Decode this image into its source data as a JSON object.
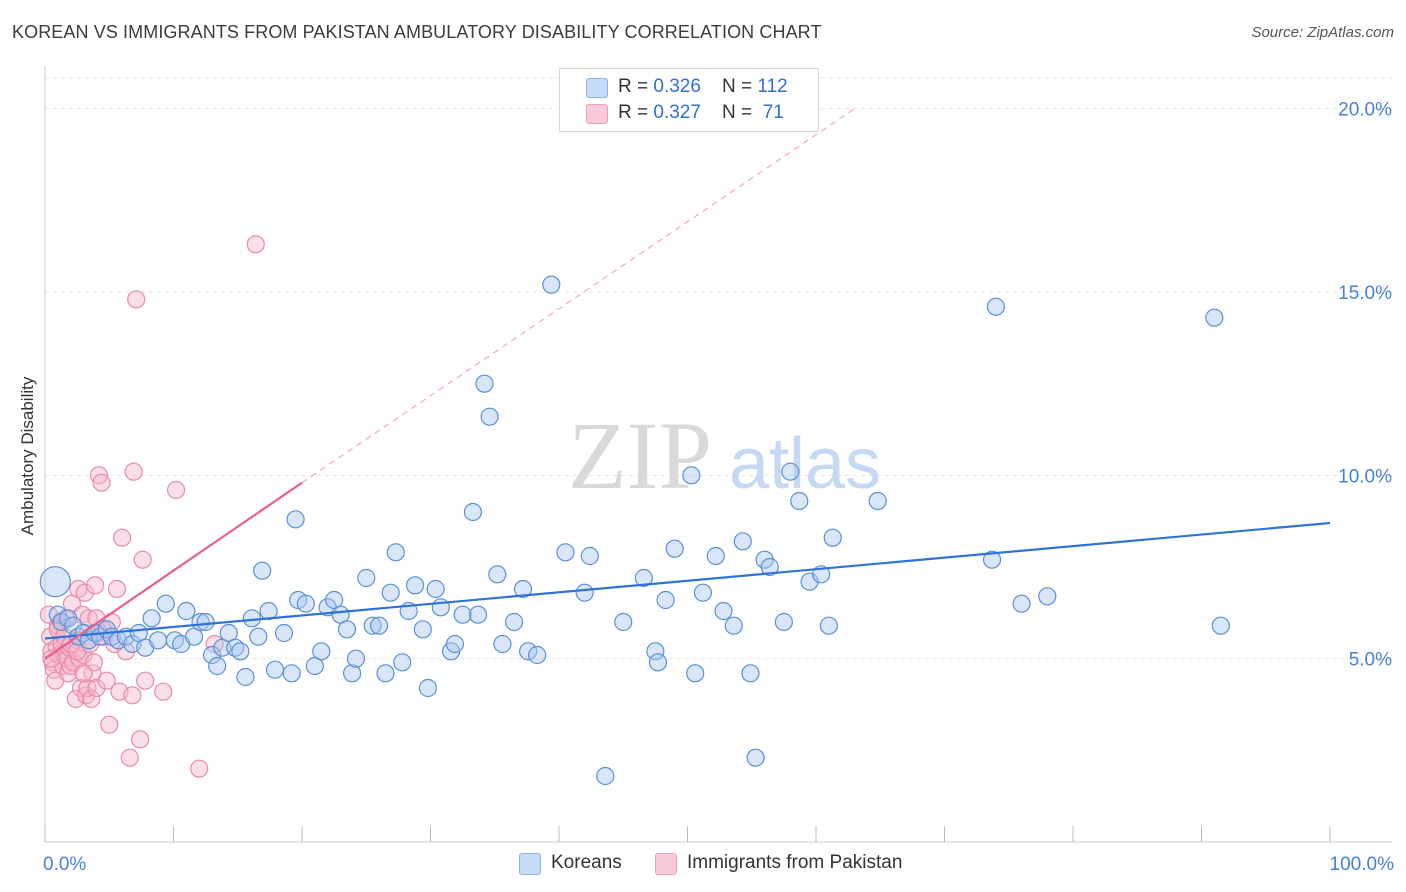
{
  "header": {
    "title": "KOREAN VS IMMIGRANTS FROM PAKISTAN AMBULATORY DISABILITY CORRELATION CHART",
    "source": "Source: ZipAtlas.com"
  },
  "watermark": {
    "zip": "ZIP",
    "atlas": "atlas"
  },
  "legend": {
    "korean": {
      "r_label": "R = ",
      "r_value": "0.326",
      "n_label": "N = ",
      "n_value": "112"
    },
    "pakistan": {
      "r_label": "R = ",
      "r_value": "0.327",
      "n_label": "N = ",
      "n_value": " 71"
    }
  },
  "colors": {
    "korean_fill": "#a9c8f0",
    "korean_stroke": "#5b8fd6",
    "korean_line": "#2f73d6",
    "pakistan_fill": "#f7b8cc",
    "pakistan_stroke": "#e889a8",
    "pakistan_line": "#e8608a",
    "tick_label": "#4a7fd4"
  },
  "chart_data": {
    "type": "scatter",
    "title": "KOREAN VS IMMIGRANTS FROM PAKISTAN AMBULATORY DISABILITY CORRELATION CHART",
    "xlabel": "",
    "ylabel": "Ambulatory Disability",
    "xlim": [
      0,
      100
    ],
    "ylim": [
      0,
      21
    ],
    "y_ticks": [
      5,
      10,
      15,
      20
    ],
    "y_tick_labels": [
      "5.0%",
      "10.0%",
      "15.0%",
      "20.0%"
    ],
    "x_tick_labels": [
      "0.0%",
      "100.0%"
    ],
    "grid": true,
    "legend_position": "top-center",
    "series": [
      {
        "name": "Koreans",
        "r": 0.326,
        "n": 112,
        "trend": {
          "x": [
            0,
            100
          ],
          "y": [
            5.55,
            8.7
          ]
        },
        "points": [
          [
            0.8,
            7.1
          ],
          [
            1.0,
            6.2
          ],
          [
            1.3,
            6.0
          ],
          [
            1.8,
            6.1
          ],
          [
            2.2,
            5.9
          ],
          [
            2.6,
            5.6
          ],
          [
            3.0,
            5.7
          ],
          [
            3.4,
            5.5
          ],
          [
            3.9,
            5.7
          ],
          [
            4.3,
            5.6
          ],
          [
            4.8,
            5.8
          ],
          [
            5.2,
            5.6
          ],
          [
            5.7,
            5.5
          ],
          [
            6.3,
            5.6
          ],
          [
            6.8,
            5.4
          ],
          [
            7.3,
            5.7
          ],
          [
            7.8,
            5.3
          ],
          [
            8.3,
            6.1
          ],
          [
            8.8,
            5.5
          ],
          [
            9.4,
            6.5
          ],
          [
            10.1,
            5.5
          ],
          [
            10.6,
            5.4
          ],
          [
            11.0,
            6.3
          ],
          [
            11.6,
            5.6
          ],
          [
            12.1,
            6.0
          ],
          [
            12.5,
            6.0
          ],
          [
            13.0,
            5.1
          ],
          [
            13.4,
            4.8
          ],
          [
            13.8,
            5.3
          ],
          [
            14.3,
            5.7
          ],
          [
            14.8,
            5.3
          ],
          [
            15.2,
            5.2
          ],
          [
            15.6,
            4.5
          ],
          [
            16.1,
            6.1
          ],
          [
            16.6,
            5.6
          ],
          [
            16.9,
            7.4
          ],
          [
            17.4,
            6.3
          ],
          [
            17.9,
            4.7
          ],
          [
            18.6,
            5.7
          ],
          [
            19.2,
            4.6
          ],
          [
            19.5,
            8.8
          ],
          [
            19.7,
            6.6
          ],
          [
            20.3,
            6.5
          ],
          [
            21.0,
            4.8
          ],
          [
            21.5,
            5.2
          ],
          [
            22.0,
            6.4
          ],
          [
            22.5,
            6.6
          ],
          [
            23.0,
            6.2
          ],
          [
            23.5,
            5.8
          ],
          [
            23.9,
            4.6
          ],
          [
            24.2,
            5.0
          ],
          [
            25.0,
            7.2
          ],
          [
            25.5,
            5.9
          ],
          [
            26.0,
            5.9
          ],
          [
            26.5,
            4.6
          ],
          [
            26.9,
            6.8
          ],
          [
            27.3,
            7.9
          ],
          [
            27.8,
            4.9
          ],
          [
            28.3,
            6.3
          ],
          [
            28.8,
            7.0
          ],
          [
            29.4,
            5.8
          ],
          [
            29.8,
            4.2
          ],
          [
            30.4,
            6.9
          ],
          [
            30.8,
            6.4
          ],
          [
            31.6,
            5.2
          ],
          [
            31.9,
            5.4
          ],
          [
            32.5,
            6.2
          ],
          [
            33.3,
            9.0
          ],
          [
            33.7,
            6.2
          ],
          [
            34.2,
            12.5
          ],
          [
            34.6,
            11.6
          ],
          [
            35.2,
            7.3
          ],
          [
            35.6,
            5.4
          ],
          [
            36.5,
            6.0
          ],
          [
            37.2,
            6.9
          ],
          [
            37.6,
            5.2
          ],
          [
            38.3,
            5.1
          ],
          [
            39.4,
            15.2
          ],
          [
            40.5,
            7.9
          ],
          [
            42.0,
            6.8
          ],
          [
            42.4,
            7.8
          ],
          [
            43.6,
            1.8
          ],
          [
            45.0,
            6.0
          ],
          [
            46.6,
            7.2
          ],
          [
            47.5,
            5.2
          ],
          [
            47.7,
            4.9
          ],
          [
            48.3,
            6.6
          ],
          [
            49.0,
            8.0
          ],
          [
            50.3,
            10.0
          ],
          [
            50.6,
            4.6
          ],
          [
            51.2,
            6.8
          ],
          [
            52.2,
            7.8
          ],
          [
            52.8,
            6.3
          ],
          [
            53.6,
            5.9
          ],
          [
            54.3,
            8.2
          ],
          [
            54.9,
            4.6
          ],
          [
            55.3,
            2.3
          ],
          [
            56.0,
            7.7
          ],
          [
            56.4,
            7.5
          ],
          [
            57.5,
            6.0
          ],
          [
            58.0,
            10.1
          ],
          [
            58.7,
            9.3
          ],
          [
            59.5,
            7.1
          ],
          [
            60.4,
            7.3
          ],
          [
            61.0,
            5.9
          ],
          [
            61.3,
            8.3
          ],
          [
            64.8,
            9.3
          ],
          [
            73.7,
            7.7
          ],
          [
            74.0,
            14.6
          ],
          [
            76.0,
            6.5
          ],
          [
            78.0,
            6.7
          ],
          [
            91.0,
            14.3
          ],
          [
            91.5,
            5.9
          ]
        ]
      },
      {
        "name": "Immigrants from Pakistan",
        "r": 0.327,
        "n": 71,
        "trend": {
          "x": [
            0,
            20
          ],
          "y": [
            5.0,
            9.8
          ]
        },
        "trend_extension": {
          "x": [
            20,
            63
          ],
          "y": [
            9.8,
            20.0
          ]
        },
        "points": [
          [
            0.3,
            6.2
          ],
          [
            0.4,
            5.6
          ],
          [
            0.5,
            5.2
          ],
          [
            0.6,
            4.9
          ],
          [
            0.7,
            4.7
          ],
          [
            0.8,
            4.4
          ],
          [
            0.9,
            5.3
          ],
          [
            1.0,
            5.9
          ],
          [
            1.1,
            5.1
          ],
          [
            1.2,
            6.0
          ],
          [
            1.3,
            5.4
          ],
          [
            1.4,
            4.8
          ],
          [
            1.5,
            5.1
          ],
          [
            1.6,
            6.1
          ],
          [
            1.7,
            5.0
          ],
          [
            1.8,
            4.6
          ],
          [
            1.9,
            5.3
          ],
          [
            2.0,
            4.8
          ],
          [
            2.1,
            6.5
          ],
          [
            2.2,
            4.9
          ],
          [
            2.3,
            5.3
          ],
          [
            2.4,
            3.9
          ],
          [
            2.5,
            5.5
          ],
          [
            2.6,
            6.9
          ],
          [
            2.7,
            5.0
          ],
          [
            2.8,
            4.2
          ],
          [
            2.9,
            6.2
          ],
          [
            3.0,
            5.1
          ],
          [
            3.1,
            6.8
          ],
          [
            3.2,
            4.0
          ],
          [
            3.3,
            4.2
          ],
          [
            3.4,
            6.1
          ],
          [
            3.5,
            5.6
          ],
          [
            3.6,
            3.9
          ],
          [
            3.7,
            4.6
          ],
          [
            3.8,
            4.9
          ],
          [
            3.9,
            7.0
          ],
          [
            4.0,
            4.2
          ],
          [
            4.1,
            5.7
          ],
          [
            4.2,
            10.0
          ],
          [
            4.4,
            9.8
          ],
          [
            4.6,
            5.6
          ],
          [
            4.8,
            4.4
          ],
          [
            5.0,
            3.2
          ],
          [
            5.2,
            6.0
          ],
          [
            5.4,
            5.4
          ],
          [
            5.6,
            6.9
          ],
          [
            5.8,
            4.1
          ],
          [
            6.0,
            8.3
          ],
          [
            6.3,
            5.2
          ],
          [
            6.6,
            2.3
          ],
          [
            6.8,
            4.0
          ],
          [
            6.9,
            10.1
          ],
          [
            7.1,
            14.8
          ],
          [
            7.4,
            2.8
          ],
          [
            7.6,
            7.7
          ],
          [
            7.8,
            4.4
          ],
          [
            9.2,
            4.1
          ],
          [
            10.2,
            9.6
          ],
          [
            12.0,
            2.0
          ],
          [
            13.2,
            5.4
          ],
          [
            16.4,
            16.3
          ],
          [
            0.5,
            5.0
          ],
          [
            1.0,
            5.8
          ],
          [
            1.5,
            5.6
          ],
          [
            2.0,
            5.4
          ],
          [
            2.5,
            5.2
          ],
          [
            3.0,
            4.6
          ],
          [
            3.5,
            5.4
          ],
          [
            4.0,
            6.1
          ],
          [
            4.5,
            5.8
          ]
        ]
      }
    ]
  },
  "bottom_legend": {
    "korean_label": "Koreans",
    "pakistan_label": "Immigrants from Pakistan"
  }
}
